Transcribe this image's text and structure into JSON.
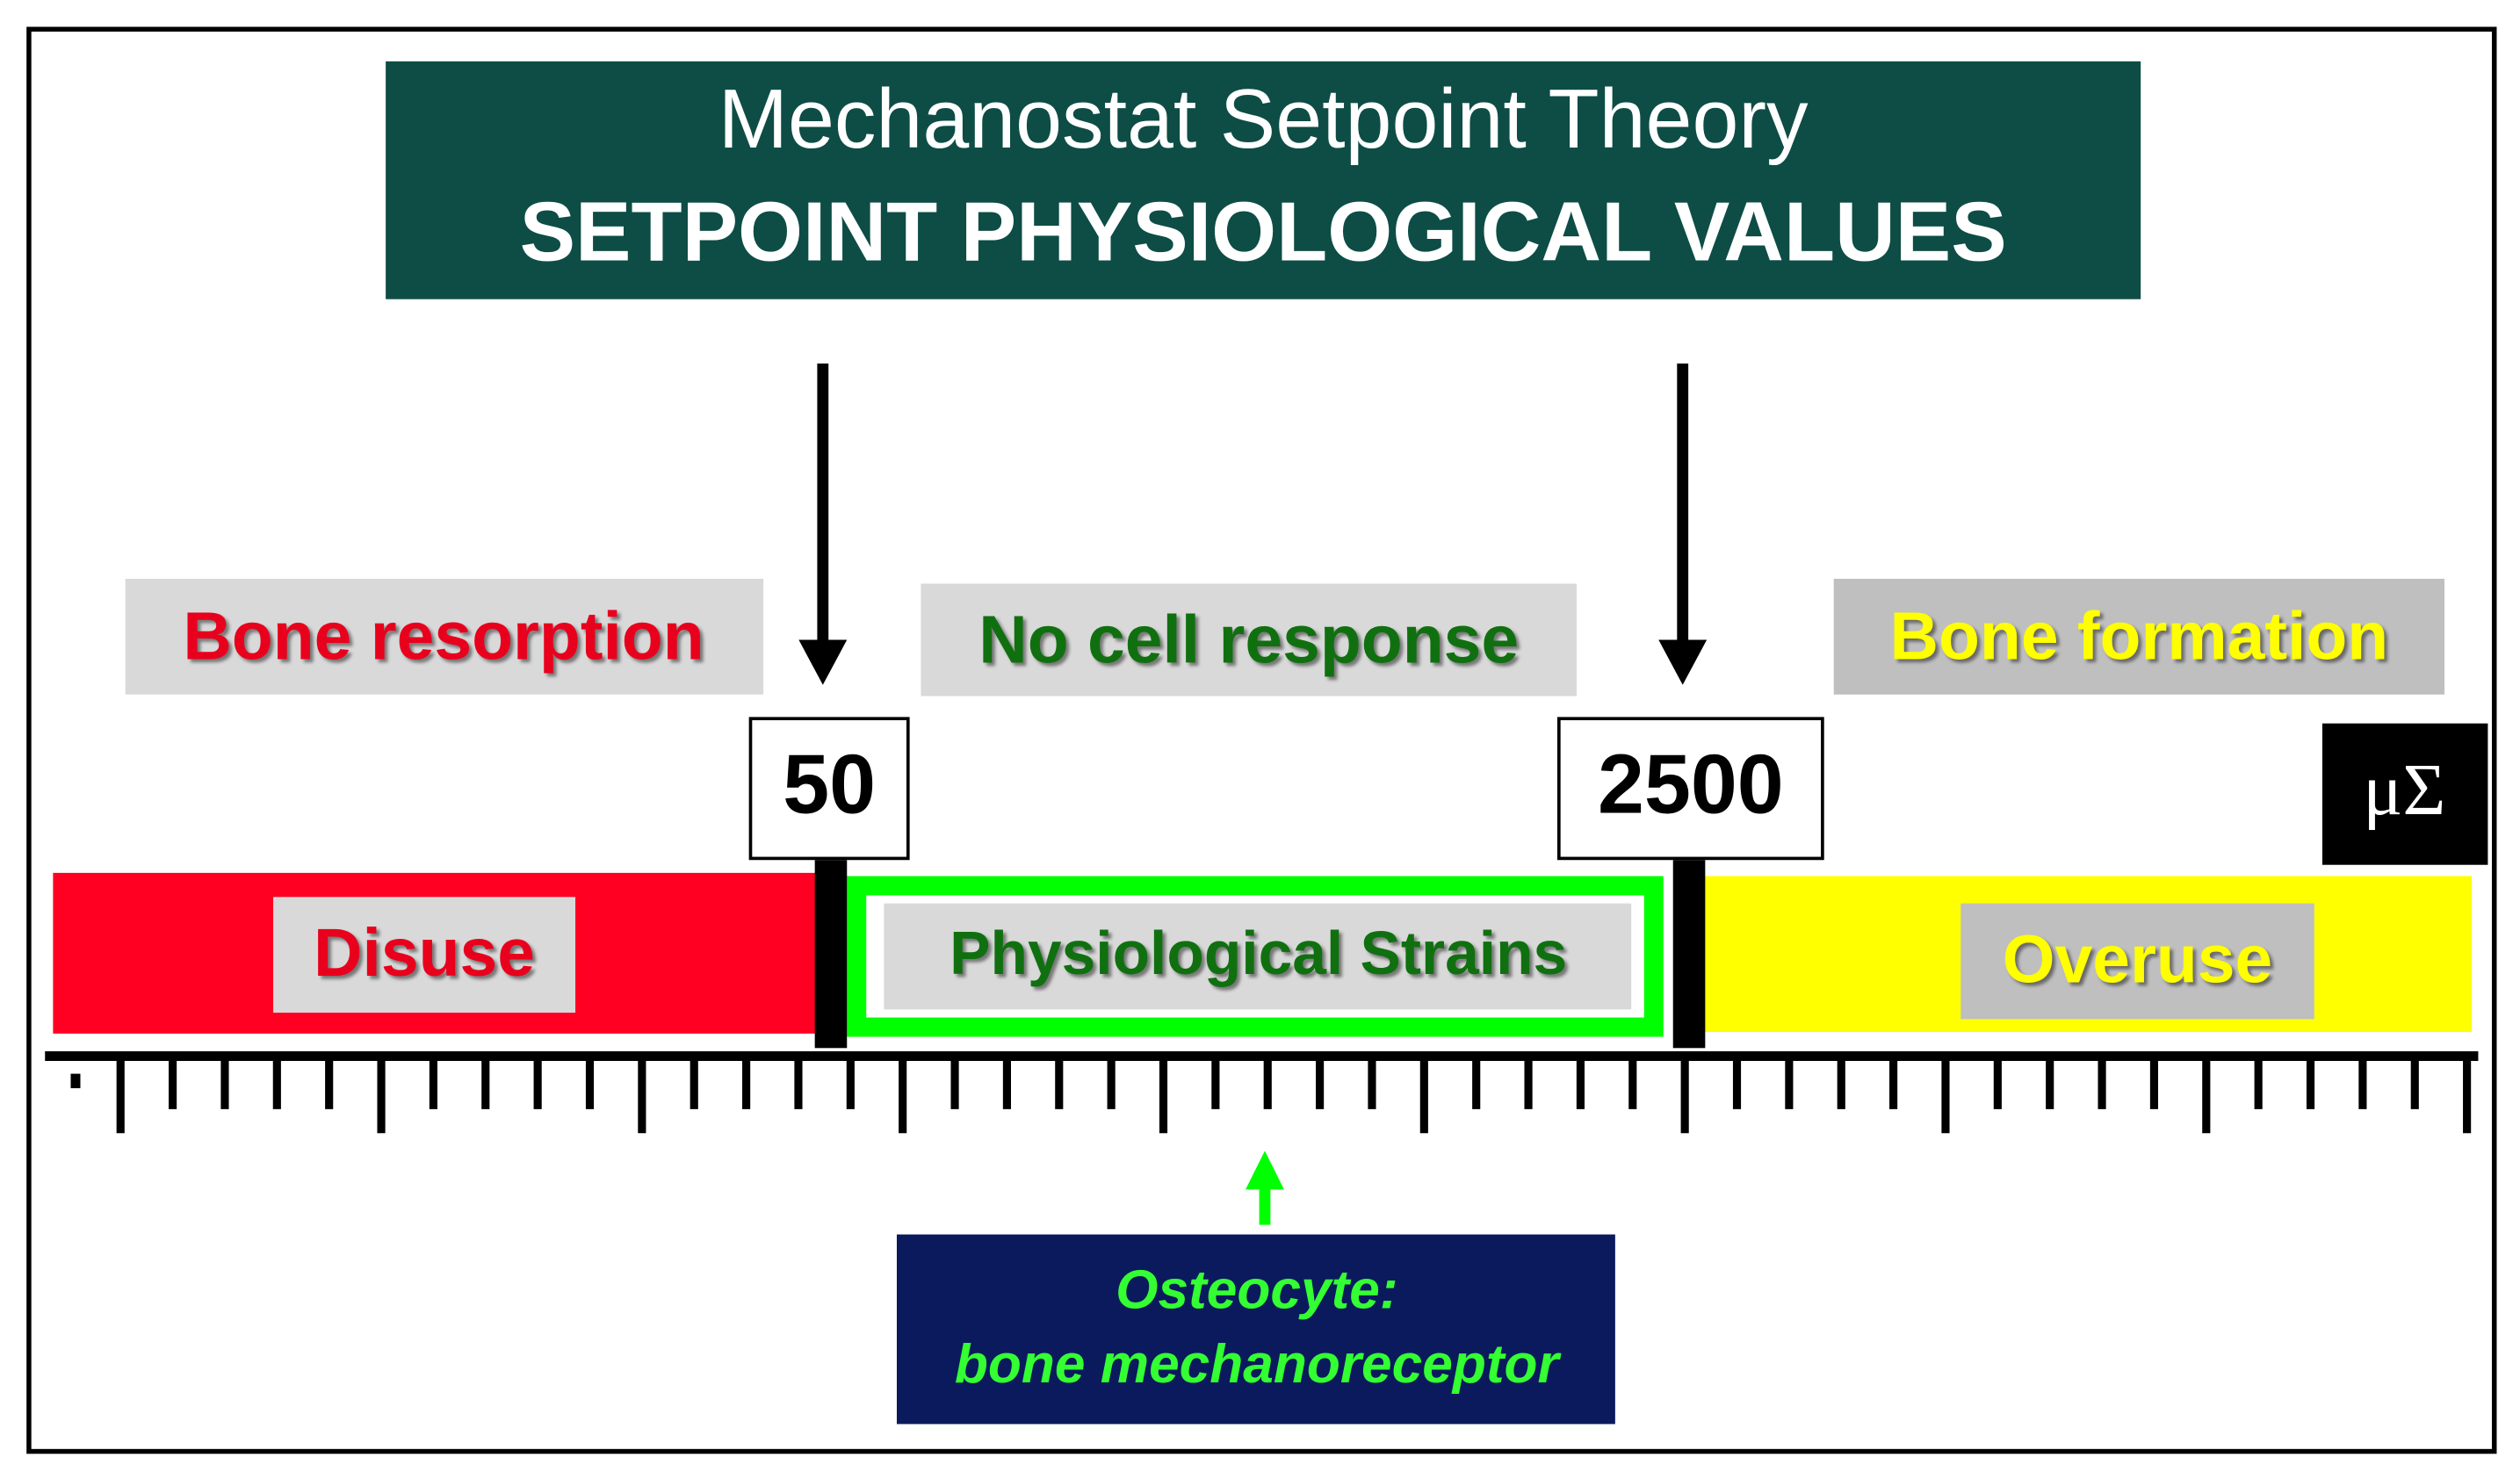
{
  "header": {
    "title": "Mechanostat Setpoint Theory",
    "subtitle": "SETPOINT PHYSIOLOGICAL VALUES"
  },
  "responses": [
    "Bone resorption",
    "No cell response",
    "Bone formation"
  ],
  "setpoints": [
    "50",
    "2500"
  ],
  "unit": "μΣ",
  "zones": [
    "Disuse",
    "Physiological Strains",
    "Overuse"
  ],
  "sensor": {
    "line1": "Osteocyte:",
    "line2": "bone mechanoreceptor"
  }
}
